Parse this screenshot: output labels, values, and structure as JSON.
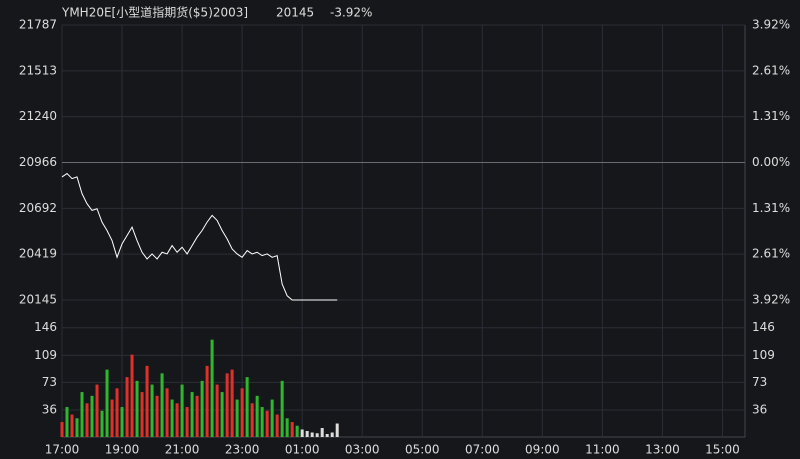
{
  "chart_data": [
    {
      "type": "line",
      "title": "YMH20E[小型道指期货($5)2003]",
      "last_price": "20145",
      "change": "-3.92%",
      "quote_color": "#2eb82e",
      "x": [
        0,
        10,
        20,
        30,
        40,
        50,
        60,
        70,
        80,
        90,
        100,
        110,
        120,
        130,
        140,
        150,
        160,
        170,
        180,
        190,
        200,
        210,
        220,
        230,
        240,
        250,
        260,
        270,
        280,
        290,
        300,
        310,
        320,
        330,
        340,
        350,
        360,
        370,
        380,
        390,
        400,
        410,
        420,
        430,
        440,
        450,
        460,
        470,
        480,
        490,
        500,
        510,
        520,
        530,
        540,
        550
      ],
      "series": [
        {
          "color": "#ffffff",
          "values": [
            20880,
            20900,
            20870,
            20880,
            20780,
            20720,
            20680,
            20690,
            20610,
            20560,
            20500,
            20400,
            20480,
            20530,
            20580,
            20500,
            20430,
            20390,
            20420,
            20390,
            20430,
            20420,
            20470,
            20430,
            20460,
            20420,
            20470,
            20520,
            20560,
            20610,
            20650,
            20620,
            20560,
            20510,
            20450,
            20420,
            20400,
            20440,
            20420,
            20430,
            20410,
            20420,
            20400,
            20410,
            20240,
            20170,
            20145,
            20145,
            20145,
            20145,
            20145,
            20145,
            20145,
            20145,
            20145,
            20145
          ]
        }
      ],
      "xlim": [
        0,
        1365
      ],
      "ylim": [
        20145,
        21787
      ],
      "yticks": [
        21787,
        21513,
        21240,
        20966,
        20692,
        20419,
        20145
      ],
      "ytick_colors": [
        "#e0302a",
        "#e0302a",
        "#e0302a",
        "#dddddd",
        "#2eb82e",
        "#2eb82e",
        "#2eb82e"
      ],
      "y2lim": [
        -3.92,
        3.92
      ],
      "y2ticks": [
        {
          "value": 3.92,
          "label": "3.92%"
        },
        {
          "value": 2.61,
          "label": "2.61%"
        },
        {
          "value": 1.31,
          "label": "1.31%"
        },
        {
          "value": 0,
          "label": "0.00%"
        },
        {
          "value": -1.31,
          "label": "1.31%"
        },
        {
          "value": -2.61,
          "label": "2.61%"
        },
        {
          "value": -3.92,
          "label": "3.92%"
        }
      ],
      "grid": true
    },
    {
      "type": "bar",
      "x": [
        0,
        10,
        20,
        30,
        40,
        50,
        60,
        70,
        80,
        90,
        100,
        110,
        120,
        130,
        140,
        150,
        160,
        170,
        180,
        190,
        200,
        210,
        220,
        230,
        240,
        250,
        260,
        270,
        280,
        290,
        300,
        310,
        320,
        330,
        340,
        350,
        360,
        370,
        380,
        390,
        400,
        410,
        420,
        430,
        440,
        450,
        460,
        470,
        480,
        490,
        500,
        510,
        520,
        530,
        540,
        550
      ],
      "values": [
        20,
        40,
        30,
        25,
        60,
        45,
        55,
        70,
        35,
        90,
        50,
        65,
        40,
        80,
        110,
        75,
        60,
        95,
        70,
        55,
        85,
        65,
        50,
        45,
        70,
        40,
        60,
        55,
        75,
        95,
        130,
        70,
        60,
        85,
        90,
        50,
        65,
        80,
        45,
        55,
        40,
        35,
        50,
        30,
        75,
        25,
        20,
        15,
        10,
        8,
        6,
        5,
        12,
        4,
        6,
        18
      ],
      "bar_colors": [
        "#e0302a",
        "#2eb82e",
        "#e0302a",
        "#2eb82e",
        "#2eb82e",
        "#e0302a",
        "#2eb82e",
        "#e0302a",
        "#2eb82e",
        "#2eb82e",
        "#e0302a",
        "#e0302a",
        "#2eb82e",
        "#e0302a",
        "#e0302a",
        "#2eb82e",
        "#e0302a",
        "#e0302a",
        "#2eb82e",
        "#e0302a",
        "#2eb82e",
        "#e0302a",
        "#2eb82e",
        "#e0302a",
        "#2eb82e",
        "#e0302a",
        "#2eb82e",
        "#e0302a",
        "#2eb82e",
        "#e0302a",
        "#2eb82e",
        "#e0302a",
        "#2eb82e",
        "#e0302a",
        "#e0302a",
        "#2eb82e",
        "#e0302a",
        "#2eb82e",
        "#e0302a",
        "#2eb82e",
        "#2eb82e",
        "#e0302a",
        "#2eb82e",
        "#e0302a",
        "#2eb82e",
        "#2eb82e",
        "#e0302a",
        "#2eb82e",
        "#dddddd",
        "#dddddd",
        "#dddddd",
        "#dddddd",
        "#dddddd",
        "#dddddd",
        "#dddddd",
        "#dddddd"
      ],
      "xlim": [
        0,
        1365
      ],
      "xticks": [
        {
          "value": 0,
          "label": "17:00"
        },
        {
          "value": 120,
          "label": "19:00"
        },
        {
          "value": 240,
          "label": "21:00"
        },
        {
          "value": 360,
          "label": "23:00"
        },
        {
          "value": 480,
          "label": "01:00"
        },
        {
          "value": 600,
          "label": "03:00"
        },
        {
          "value": 720,
          "label": "05:00"
        },
        {
          "value": 840,
          "label": "07:00"
        },
        {
          "value": 960,
          "label": "09:00"
        },
        {
          "value": 1080,
          "label": "11:00"
        },
        {
          "value": 1200,
          "label": "13:00"
        },
        {
          "value": 1320,
          "label": "15:00"
        }
      ],
      "ylim": [
        0,
        183
      ],
      "yticks": [
        36,
        73,
        109,
        146
      ],
      "grid": true
    }
  ]
}
